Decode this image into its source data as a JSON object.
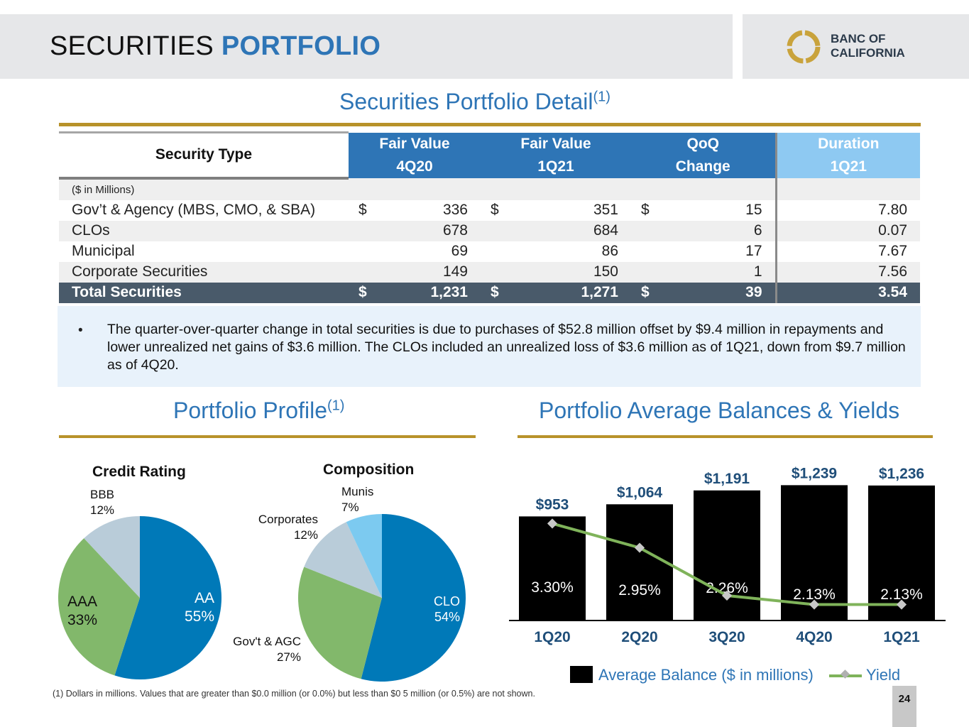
{
  "header": {
    "title_part1": "SECURITIES",
    "title_part2": "PORTFOLIO",
    "logo_line1": "BANC OF",
    "logo_line2": "CALIFORNIA"
  },
  "detail": {
    "title": "Securities Portfolio Detail",
    "footnote_ref": "(1)",
    "columns": {
      "type": "Security Type",
      "fv4q_l1": "Fair Value",
      "fv4q_l2": "4Q20",
      "fv1q_l1": "Fair Value",
      "fv1q_l2": "1Q21",
      "qoq_l1": "QoQ",
      "qoq_l2": "Change",
      "dur_l1": "Duration",
      "dur_l2": "1Q21"
    },
    "units": "($ in Millions)",
    "currency": "$",
    "rows": [
      {
        "label": "Gov’t & Agency (MBS, CMO, & SBA)",
        "fv4q": "336",
        "fv1q": "351",
        "qoq": "15",
        "duration": "7.80"
      },
      {
        "label": "CLOs",
        "fv4q": "678",
        "fv1q": "684",
        "qoq": "6",
        "duration": "0.07"
      },
      {
        "label": "Municipal",
        "fv4q": "69",
        "fv1q": "86",
        "qoq": "17",
        "duration": "7.67"
      },
      {
        "label": "Corporate Securities",
        "fv4q": "149",
        "fv1q": "150",
        "qoq": "1",
        "duration": "7.56"
      }
    ],
    "total": {
      "label": "Total Securities",
      "fv4q": "1,231",
      "fv1q": "1,271",
      "qoq": "39",
      "duration": "3.54"
    },
    "note_bullet": "•",
    "note": "The quarter-over-quarter change in total securities is due to purchases of $52.8 million offset by $9.4 million in repayments and lower unrealized net gains of $3.6 million. The CLOs included an unrealized loss of $3.6 million as of 1Q21, down from $9.7 million as of 4Q20."
  },
  "profile": {
    "title": "Portfolio Profile",
    "footnote_ref": "(1)"
  },
  "balances": {
    "title": "Portfolio Average Balances & Yields",
    "legend_balance": "Average Balance ($ in millions)",
    "legend_yield": "Yield"
  },
  "chart_data": [
    {
      "type": "pie",
      "title": "Credit Rating",
      "slices": [
        {
          "name": "AA",
          "value": 55,
          "label": "55%",
          "color": "#0079b8"
        },
        {
          "name": "AAA",
          "value": 33,
          "label": "33%",
          "color": "#82b86b"
        },
        {
          "name": "BBB",
          "value": 12,
          "label": "12%",
          "color": "#b9ccd9"
        }
      ]
    },
    {
      "type": "pie",
      "title": "Composition",
      "slices": [
        {
          "name": "CLO",
          "value": 54,
          "label": "54%",
          "color": "#0079b8"
        },
        {
          "name": "Gov't & AGC",
          "value": 27,
          "label": "27%",
          "color": "#82b86b"
        },
        {
          "name": "Corporates",
          "value": 12,
          "label": "12%",
          "color": "#b9ccd9"
        },
        {
          "name": "Munis",
          "value": 7,
          "label": "7%",
          "color": "#7ccaf0"
        }
      ]
    },
    {
      "type": "bar",
      "title": "Portfolio Average Balances & Yields",
      "categories": [
        "1Q20",
        "2Q20",
        "3Q20",
        "4Q20",
        "1Q21"
      ],
      "series": [
        {
          "name": "Average Balance ($ in millions)",
          "values": [
            953,
            1064,
            1191,
            1239,
            1236
          ],
          "labels": [
            "$953",
            "$1,064",
            "$1,191",
            "$1,239",
            "$1,236"
          ],
          "color": "#000000"
        },
        {
          "name": "Yield",
          "type": "line",
          "values": [
            3.3,
            2.95,
            2.26,
            2.13,
            2.13
          ],
          "labels": [
            "3.30%",
            "2.95%",
            "2.26%",
            "2.13%",
            "2.13%"
          ],
          "color": "#7fb35a"
        }
      ],
      "bar_ylim": [
        0,
        1300
      ],
      "yield_ylim": [
        1.9,
        3.95
      ]
    }
  ],
  "footer": {
    "footnote": "(1)  Dollars in millions. Values that are greater than $0.0 million (or 0.0%) but less than $0 5 million (or 0.5%) are not shown.",
    "page": "24"
  }
}
